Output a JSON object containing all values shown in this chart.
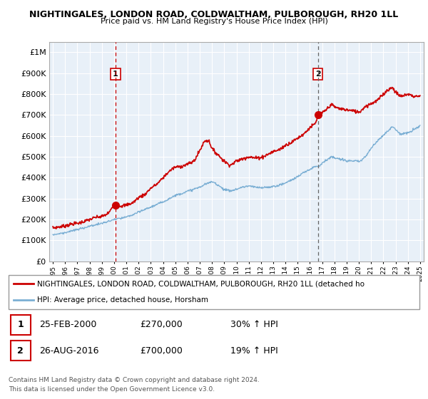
{
  "title": "NIGHTINGALES, LONDON ROAD, COLDWALTHAM, PULBOROUGH, RH20 1LL",
  "subtitle": "Price paid vs. HM Land Registry's House Price Index (HPI)",
  "legend_line1": "NIGHTINGALES, LONDON ROAD, COLDWALTHAM, PULBOROUGH, RH20 1LL (detached ho",
  "legend_line2": "HPI: Average price, detached house, Horsham",
  "footer1": "Contains HM Land Registry data © Crown copyright and database right 2024.",
  "footer2": "This data is licensed under the Open Government Licence v3.0.",
  "table": [
    {
      "num": "1",
      "date": "25-FEB-2000",
      "price": "£270,000",
      "hpi": "30% ↑ HPI"
    },
    {
      "num": "2",
      "date": "26-AUG-2016",
      "price": "£700,000",
      "hpi": "19% ↑ HPI"
    }
  ],
  "purchase1": {
    "year": 2000.12,
    "price": 270000
  },
  "purchase2": {
    "year": 2016.65,
    "price": 700000
  },
  "vline1_year": 2000.12,
  "vline2_year": 2016.65,
  "ylim": [
    0,
    1050000
  ],
  "xlim": [
    1994.7,
    2025.3
  ],
  "red_color": "#cc0000",
  "blue_color": "#7bafd4",
  "chart_bg": "#e8f0f8",
  "grid_color": "#ffffff",
  "background_color": "#ffffff"
}
